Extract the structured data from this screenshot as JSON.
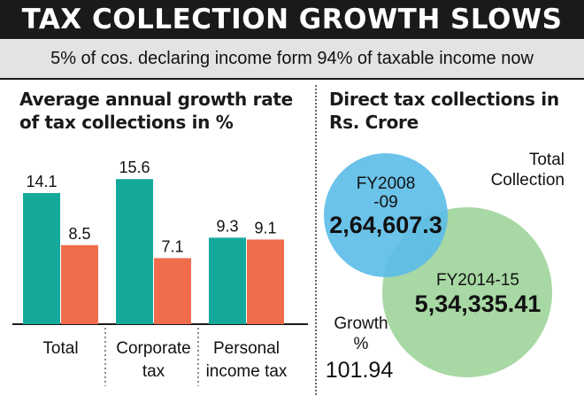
{
  "header": {
    "title": "TAX COLLECTION GROWTH SLOWS",
    "subtitle": "5% of cos. declaring income form 94% of taxable income now"
  },
  "left_panel": {
    "title_line1": "Average annual growth rate",
    "title_line2": "of tax collections in %"
  },
  "right_panel": {
    "title_line1": "Direct tax collections in",
    "title_line2": "Rs. Crore",
    "total_label_line1": "Total",
    "total_label_line2": "Collection",
    "circle_small": {
      "label_line1": "FY2008",
      "label_line2": "-09",
      "value": "2,64,607.3",
      "color": "#5bbde8"
    },
    "circle_large": {
      "label": "FY2014-15",
      "value": "5,34,335.41",
      "color": "#9fd49a"
    },
    "growth_label_line1": "Growth",
    "growth_label_line2": "%",
    "growth_value": "101.94"
  },
  "colors": {
    "teal": "#15a99c",
    "orange": "#ef6c4c"
  },
  "chart_data": [
    {
      "type": "bar",
      "title": "Average annual growth rate of tax collections in %",
      "categories": [
        {
          "line1": "Total",
          "line2": ""
        },
        {
          "line1": "Corporate",
          "line2": "tax"
        },
        {
          "line1": "Personal",
          "line2": "income tax"
        }
      ],
      "series": [
        {
          "name": "teal",
          "values": [
            14.1,
            15.6,
            9.3
          ],
          "labels": [
            "14.1",
            "15.6",
            "9.3"
          ]
        },
        {
          "name": "orange",
          "values": [
            8.5,
            7.1,
            9.1
          ],
          "labels": [
            "8.5",
            "7.1",
            "9.1"
          ]
        }
      ],
      "ylim": [
        0,
        18
      ]
    },
    {
      "type": "bubble",
      "title": "Direct tax collections in Rs. Crore",
      "categories": [
        "FY2008-09",
        "FY2014-15"
      ],
      "values": [
        264607.3,
        534335.41
      ],
      "growth_percent": 101.94
    }
  ]
}
